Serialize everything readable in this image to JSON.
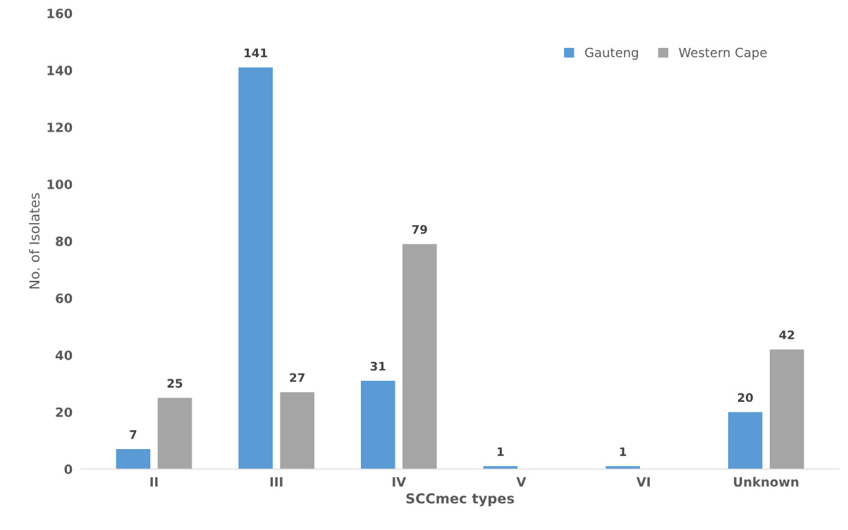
{
  "chart_data": {
    "type": "bar",
    "xlabel": "SCCmec types",
    "ylabel": "No. of Isolates",
    "categories": [
      "II",
      "III",
      "IV",
      "V",
      "VI",
      "Unknown"
    ],
    "series": [
      {
        "name": "Gauteng",
        "color": "#5b9bd5",
        "values": [
          7,
          141,
          31,
          1,
          1,
          20
        ]
      },
      {
        "name": "Western Cape",
        "color": "#a5a5a5",
        "values": [
          25,
          27,
          79,
          null,
          null,
          42
        ]
      }
    ],
    "ylim": [
      0,
      160
    ],
    "yticks": [
      0,
      20,
      40,
      60,
      80,
      100,
      120,
      140,
      160
    ],
    "grid": false,
    "legend": "top right",
    "data_labels": true
  }
}
